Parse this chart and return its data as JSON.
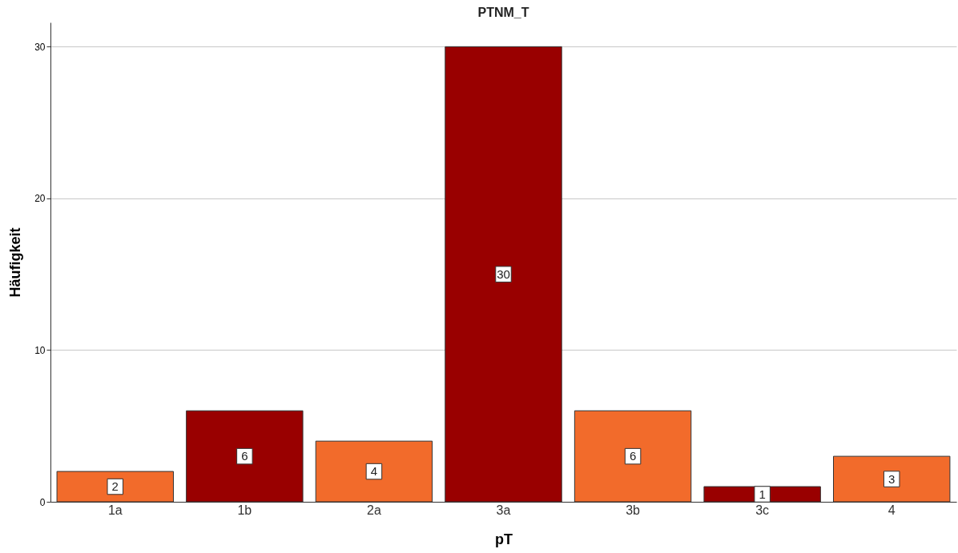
{
  "chart_data": {
    "type": "bar",
    "title": "PTNM_T",
    "xlabel": "pT",
    "ylabel": "Häufigkeit",
    "categories": [
      "1a",
      "1b",
      "2a",
      "3a",
      "3b",
      "3c",
      "4"
    ],
    "values": [
      2,
      6,
      4,
      30,
      6,
      1,
      3
    ],
    "colors": [
      "#f26b2b",
      "#990000",
      "#f26b2b",
      "#990000",
      "#f26b2b",
      "#990000",
      "#f26b2b"
    ],
    "ylim": [
      0,
      31.6
    ],
    "yticks": [
      0,
      10,
      20,
      30
    ],
    "grid": "y",
    "data_labels": true
  }
}
